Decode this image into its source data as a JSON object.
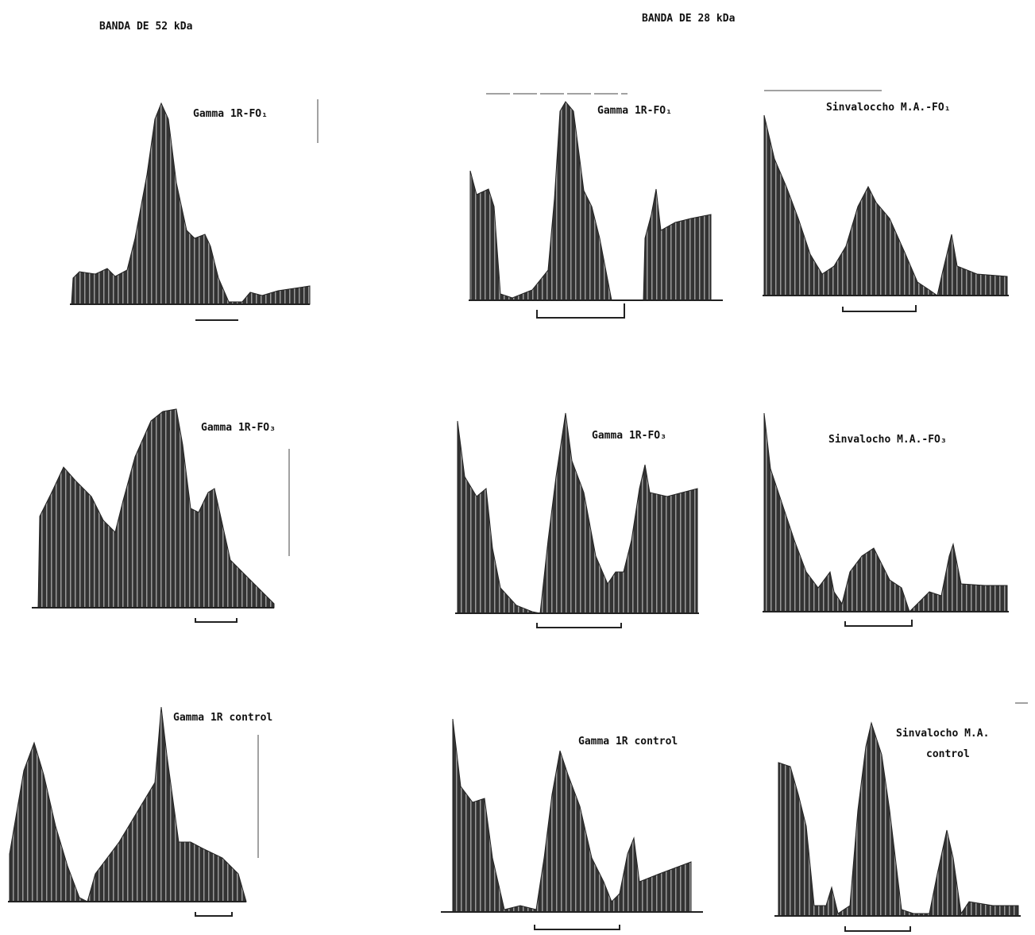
{
  "headers": [
    "BANDA DE 52 kDa",
    "BANDA DE 28 kDa"
  ],
  "panels": [
    {
      "label": [
        "Gamma 1R-FO₁"
      ]
    },
    {
      "label": [
        "Gamma 1R-FO₃"
      ]
    },
    {
      "label": [
        "Gamma 1R control"
      ]
    },
    {
      "label": [
        "Gamma 1R-FO₁"
      ]
    },
    {
      "label": [
        "Sinvaloccho M.A.-FO₁"
      ]
    },
    {
      "label": [
        "Gamma 1R-FO₃"
      ]
    },
    {
      "label": [
        "Sinvalocho M.A.-FO₃"
      ]
    },
    {
      "label": [
        "Gamma 1R control"
      ]
    },
    {
      "label": [
        "Sinvalocho M.A.",
        "control"
      ]
    }
  ]
}
